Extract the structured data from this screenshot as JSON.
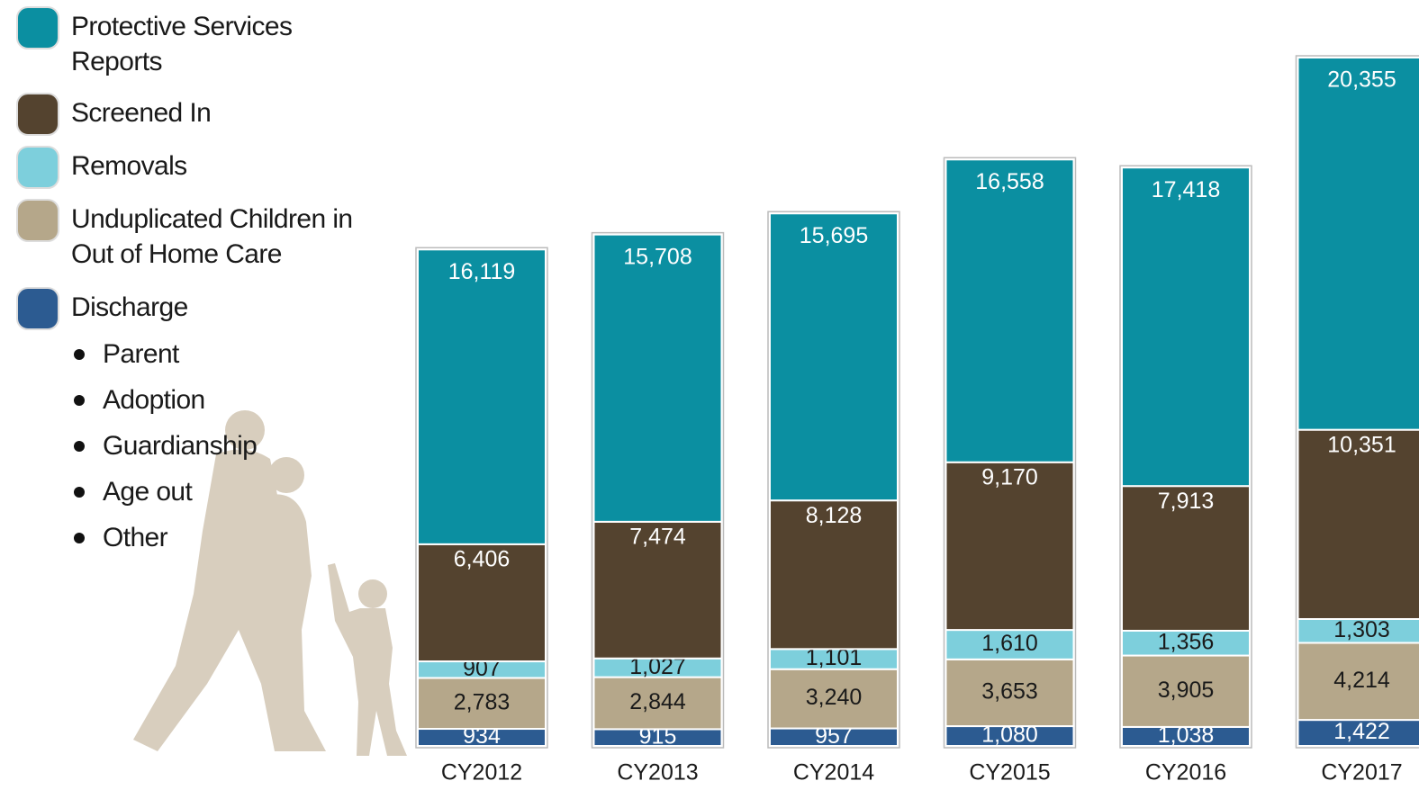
{
  "chart_data": {
    "type": "stacked-bar",
    "categories": [
      "CY2012",
      "CY2013",
      "CY2014",
      "CY2015",
      "CY2016",
      "CY2017"
    ],
    "series": [
      {
        "name": "Protective Services Reports",
        "color": "#0b8fa1",
        "values": [
          16119,
          15708,
          15695,
          16558,
          17418,
          20355
        ],
        "value_labels": [
          "16,119",
          "15,708",
          "15,695",
          "16,558",
          "17,418",
          "20,355"
        ]
      },
      {
        "name": "Screened In",
        "color": "#54432f",
        "values": [
          6406,
          7474,
          8128,
          9170,
          7913,
          10351
        ],
        "value_labels": [
          "6,406",
          "7,474",
          "8,128",
          "9,170",
          "7,913",
          "10,351"
        ]
      },
      {
        "name": "Removals",
        "color": "#7dcfdc",
        "values": [
          907,
          1027,
          1101,
          1610,
          1356,
          1303
        ],
        "value_labels": [
          "907",
          "1,027",
          "1,101",
          "1,610",
          "1,356",
          "1,303"
        ]
      },
      {
        "name": "Unduplicated Children in Out of Home Care",
        "color": "#b5a78a",
        "values": [
          2783,
          2844,
          3240,
          3653,
          3905,
          4214
        ],
        "value_labels": [
          "2,783",
          "2,844",
          "3,240",
          "3,653",
          "3,905",
          "4,214"
        ]
      },
      {
        "name": "Discharge",
        "color": "#2c5b91",
        "values": [
          934,
          915,
          957,
          1080,
          1038,
          1422
        ],
        "value_labels": [
          "934",
          "915",
          "957",
          "1,080",
          "1,038",
          "1,422"
        ]
      }
    ],
    "discharge_types": [
      "Parent",
      "Adoption",
      "Guardianship",
      "Age out",
      "Other"
    ]
  }
}
